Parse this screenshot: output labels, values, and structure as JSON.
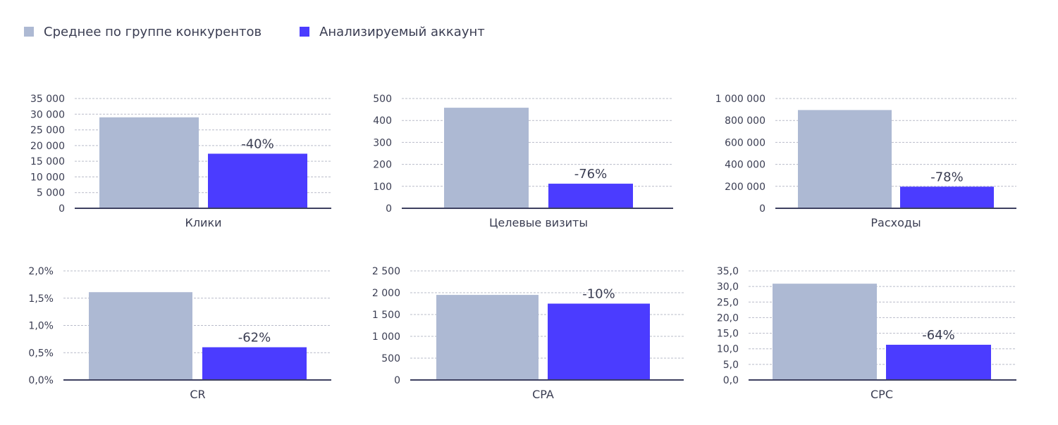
{
  "legend": {
    "items": [
      {
        "label": "Среднее по группе конкурентов",
        "color": "#adb9d3"
      },
      {
        "label": "Анализируемый аккаунт",
        "color": "#4b3cff"
      }
    ]
  },
  "chart_data": [
    {
      "type": "bar",
      "categories": [
        "Клики"
      ],
      "series": [
        {
          "name": "Среднее по группе конкурентов",
          "values": [
            29000
          ]
        },
        {
          "name": "Анализируемый аккаунт",
          "values": [
            17400
          ]
        }
      ],
      "annotation": "-40%",
      "ylim": [
        0,
        35000
      ],
      "yticks": [
        0,
        5000,
        10000,
        15000,
        20000,
        25000,
        30000,
        35000
      ],
      "ytick_labels": [
        "0",
        "5 000",
        "10 000",
        "15 000",
        "20 000",
        "25 000",
        "30 000",
        "35 000"
      ],
      "grid": true
    },
    {
      "type": "bar",
      "categories": [
        "Целевые визиты"
      ],
      "series": [
        {
          "name": "Среднее по группе конкурентов",
          "values": [
            458
          ]
        },
        {
          "name": "Анализируемый аккаунт",
          "values": [
            112
          ]
        }
      ],
      "annotation": "-76%",
      "ylim": [
        0,
        500
      ],
      "yticks": [
        0,
        100,
        200,
        300,
        400,
        500
      ],
      "ytick_labels": [
        "0",
        "100",
        "200",
        "300",
        "400",
        "500"
      ],
      "grid": true
    },
    {
      "type": "bar",
      "categories": [
        "Расходы"
      ],
      "series": [
        {
          "name": "Среднее по группе конкурентов",
          "values": [
            895000
          ]
        },
        {
          "name": "Анализируемый аккаунт",
          "values": [
            197000
          ]
        }
      ],
      "annotation": "-78%",
      "ylim": [
        0,
        1000000
      ],
      "yticks": [
        0,
        200000,
        400000,
        600000,
        800000,
        1000000
      ],
      "ytick_labels": [
        "0",
        "200 000",
        "400 000",
        "600 000",
        "800 000",
        "1 000 000"
      ],
      "grid": true
    },
    {
      "type": "bar",
      "categories": [
        "CR"
      ],
      "series": [
        {
          "name": "Среднее по группе конкурентов",
          "values": [
            1.61
          ]
        },
        {
          "name": "Анализируемый аккаунт",
          "values": [
            0.6
          ]
        }
      ],
      "annotation": "-62%",
      "ylim": [
        0,
        2.0
      ],
      "yticks": [
        0,
        0.5,
        1.0,
        1.5,
        2.0
      ],
      "ytick_labels": [
        "0,0%",
        "0,5%",
        "1,0%",
        "1,5%",
        "2,0%"
      ],
      "grid": true
    },
    {
      "type": "bar",
      "categories": [
        "CPA"
      ],
      "series": [
        {
          "name": "Среднее по группе конкурентов",
          "values": [
            1950
          ]
        },
        {
          "name": "Анализируемый аккаунт",
          "values": [
            1750
          ]
        }
      ],
      "annotation": "-10%",
      "ylim": [
        0,
        2500
      ],
      "yticks": [
        0,
        500,
        1000,
        1500,
        2000,
        2500
      ],
      "ytick_labels": [
        "0",
        "500",
        "1 000",
        "1 500",
        "2 000",
        "2 500"
      ],
      "grid": true
    },
    {
      "type": "bar",
      "categories": [
        "CPC"
      ],
      "series": [
        {
          "name": "Среднее по группе конкурентов",
          "values": [
            30.9
          ]
        },
        {
          "name": "Анализируемый аккаунт",
          "values": [
            11.3
          ]
        }
      ],
      "annotation": "-64%",
      "ylim": [
        0,
        35
      ],
      "yticks": [
        0,
        5,
        10,
        15,
        20,
        25,
        30,
        35
      ],
      "ytick_labels": [
        "0,0",
        "5,0",
        "10,0",
        "15,0",
        "20,0",
        "25,0",
        "30,0",
        "35,0"
      ],
      "grid": true
    }
  ]
}
